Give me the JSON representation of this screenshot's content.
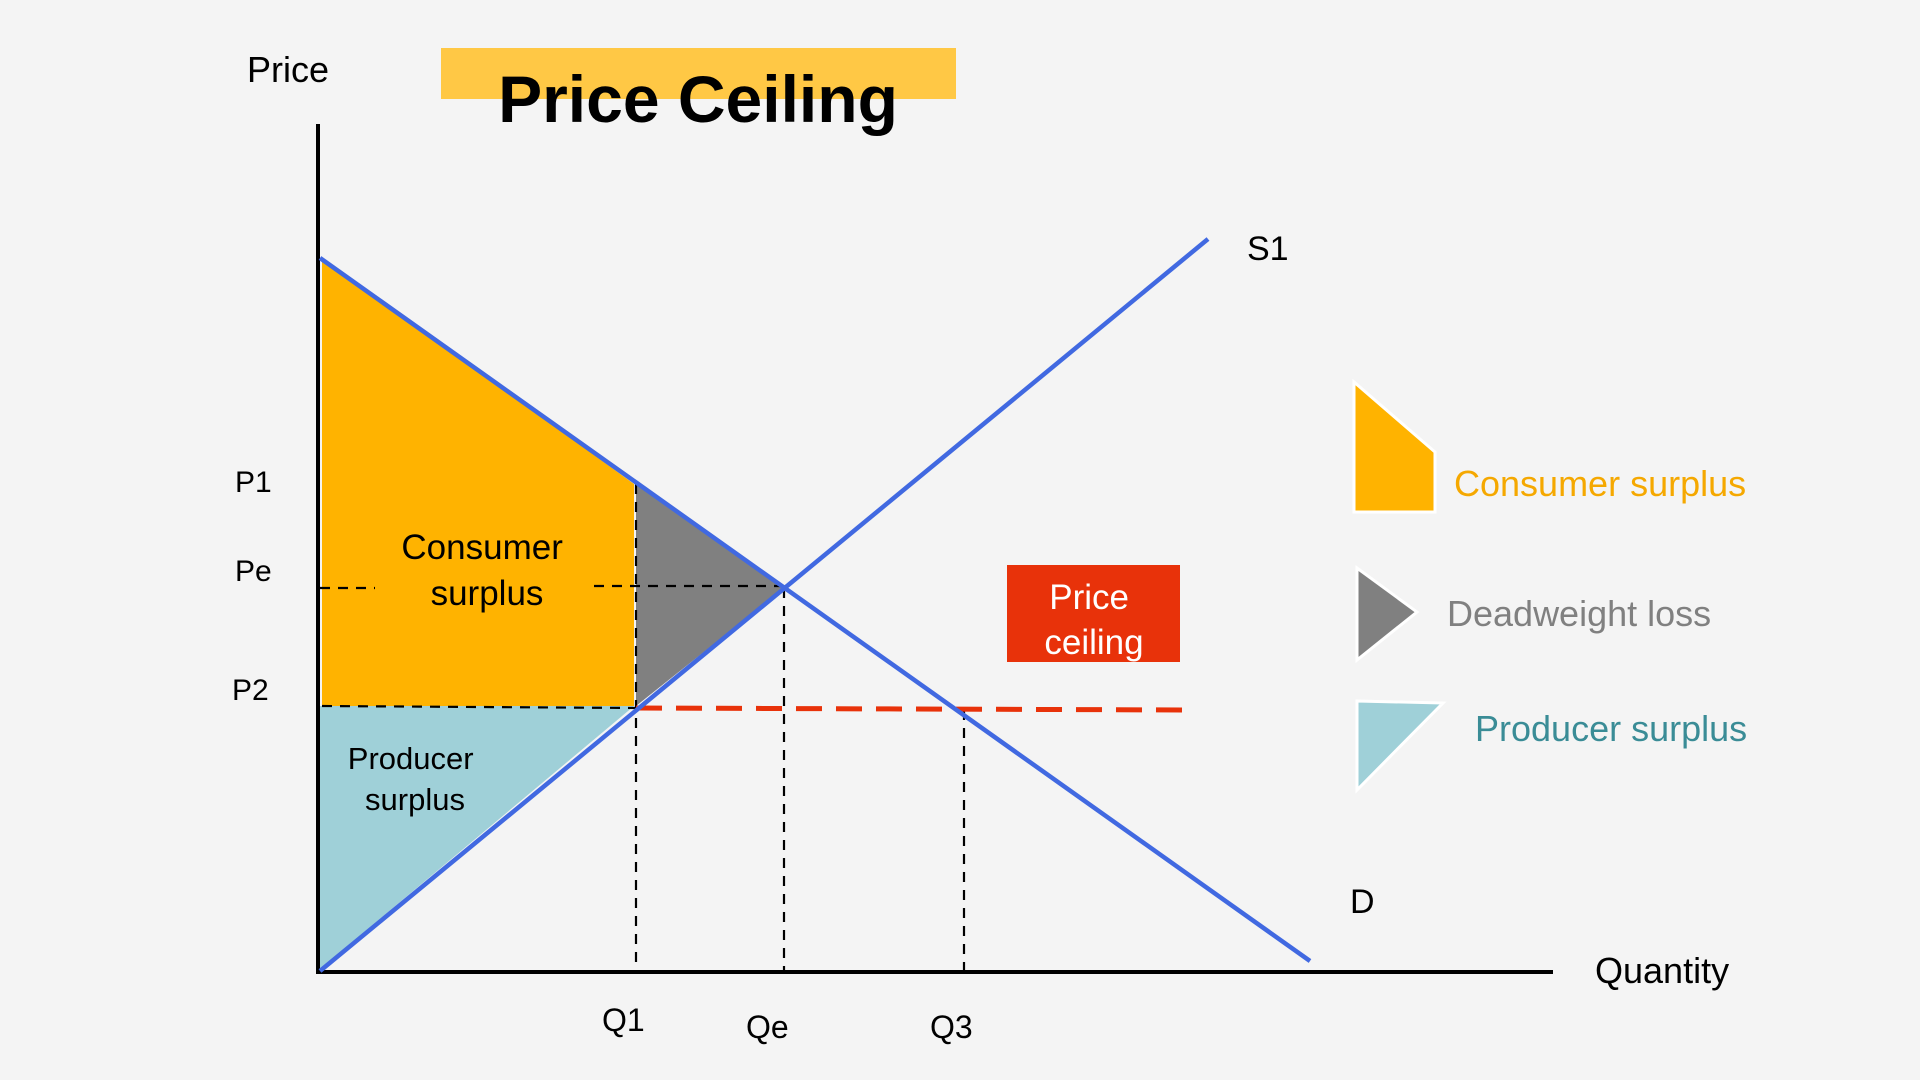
{
  "title": "Price Ceiling",
  "axes": {
    "y_label": "Price",
    "x_label": "Quantity"
  },
  "curves": {
    "supply": "S1",
    "demand": "D"
  },
  "price_ticks": {
    "p1": "P1",
    "pe": "Pe",
    "p2": "P2"
  },
  "quantity_ticks": {
    "q1": "Q1",
    "qe": "Qe",
    "q3": "Q3"
  },
  "regions": {
    "consumer_surplus": [
      "Consumer",
      "surplus"
    ],
    "producer_surplus": [
      "Producer",
      "surplus"
    ]
  },
  "price_ceiling_box": [
    "Price",
    "ceiling"
  ],
  "legend": {
    "consumer_surplus": "Consumer surplus",
    "deadweight_loss": "Deadweight loss",
    "producer_surplus": "Producer surplus"
  },
  "colors": {
    "background": "#f4f4f4",
    "consumer_surplus": "#ffb300",
    "producer_surplus": "#9fd0d8",
    "deadweight_loss": "#808080",
    "curve": "#4169e1",
    "price_ceiling": "#e8320a",
    "title_highlight": "#ffc845",
    "legend_consumer_text": "#f5a800",
    "legend_deadweight_text": "#808080",
    "legend_producer_text": "#3a8c96"
  }
}
